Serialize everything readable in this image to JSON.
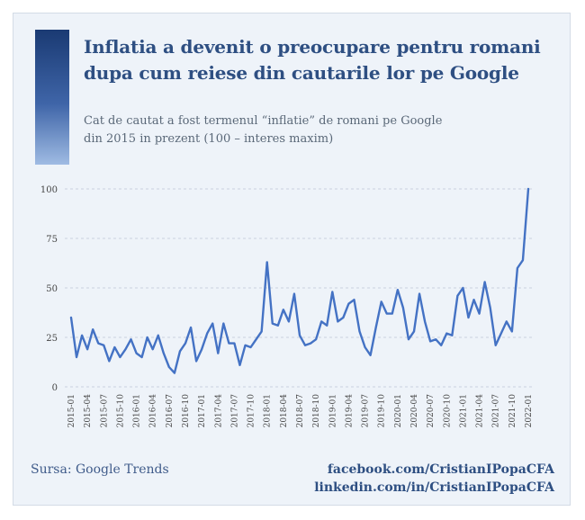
{
  "header": {
    "title_line1": "Inflatia a devenit o preocupare pentru romani",
    "title_line2": "dupa cum reiese din cautarile lor pe Google",
    "subtitle_line1": "Cat de cautat a fost termenul “inflatie” de romani pe Google",
    "subtitle_line2": "din 2015 in prezent (100 – interes maxim)"
  },
  "footer": {
    "source": "Sursa: Google Trends",
    "facebook": "facebook.com/CristianIPopaCFA",
    "linkedin": "linkedin.com/in/CristianIPopaCFA"
  },
  "colors": {
    "line": "#4472c4",
    "title": "#2e4f82",
    "grid": "#c9d2de",
    "background": "#eef3f9"
  },
  "chart_data": {
    "type": "line",
    "title": "",
    "xlabel": "",
    "ylabel": "",
    "ylim": [
      0,
      100
    ],
    "yticks": [
      0,
      25,
      50,
      75,
      100
    ],
    "grid": "horizontal dashed",
    "legend": "none",
    "x_tick_labels": [
      "2015-01",
      "2015-04",
      "2015-07",
      "2015-10",
      "2016-01",
      "2016-04",
      "2016-07",
      "2016-10",
      "2017-01",
      "2017-04",
      "2017-07",
      "2017-10",
      "2018-01",
      "2018-04",
      "2018-07",
      "2018-10",
      "2019-01",
      "2019-04",
      "2019-07",
      "2019-10",
      "2020-01",
      "2020-04",
      "2020-07",
      "2020-10",
      "2021-01",
      "2021-04",
      "2021-07",
      "2021-10",
      "2022-01"
    ],
    "x_start": "2015-01",
    "x_step": "1 month",
    "series": [
      {
        "values": [
          35,
          15,
          26,
          19,
          29,
          22,
          21,
          13,
          20,
          15,
          19,
          24,
          17,
          15,
          25,
          19,
          26,
          17,
          10,
          7,
          18,
          22,
          30,
          13,
          19,
          27,
          32,
          17,
          32,
          22,
          22,
          11,
          21,
          20,
          24,
          28,
          63,
          32,
          31,
          39,
          33,
          47,
          26,
          21,
          22,
          24,
          33,
          31,
          48,
          33,
          35,
          42,
          44,
          28,
          20,
          16,
          30,
          43,
          37,
          37,
          49,
          40,
          24,
          28,
          47,
          33,
          23,
          24,
          21,
          27,
          26,
          46,
          50,
          35,
          44,
          37,
          53,
          40,
          21,
          27,
          33,
          28,
          60,
          64,
          100
        ]
      }
    ]
  }
}
